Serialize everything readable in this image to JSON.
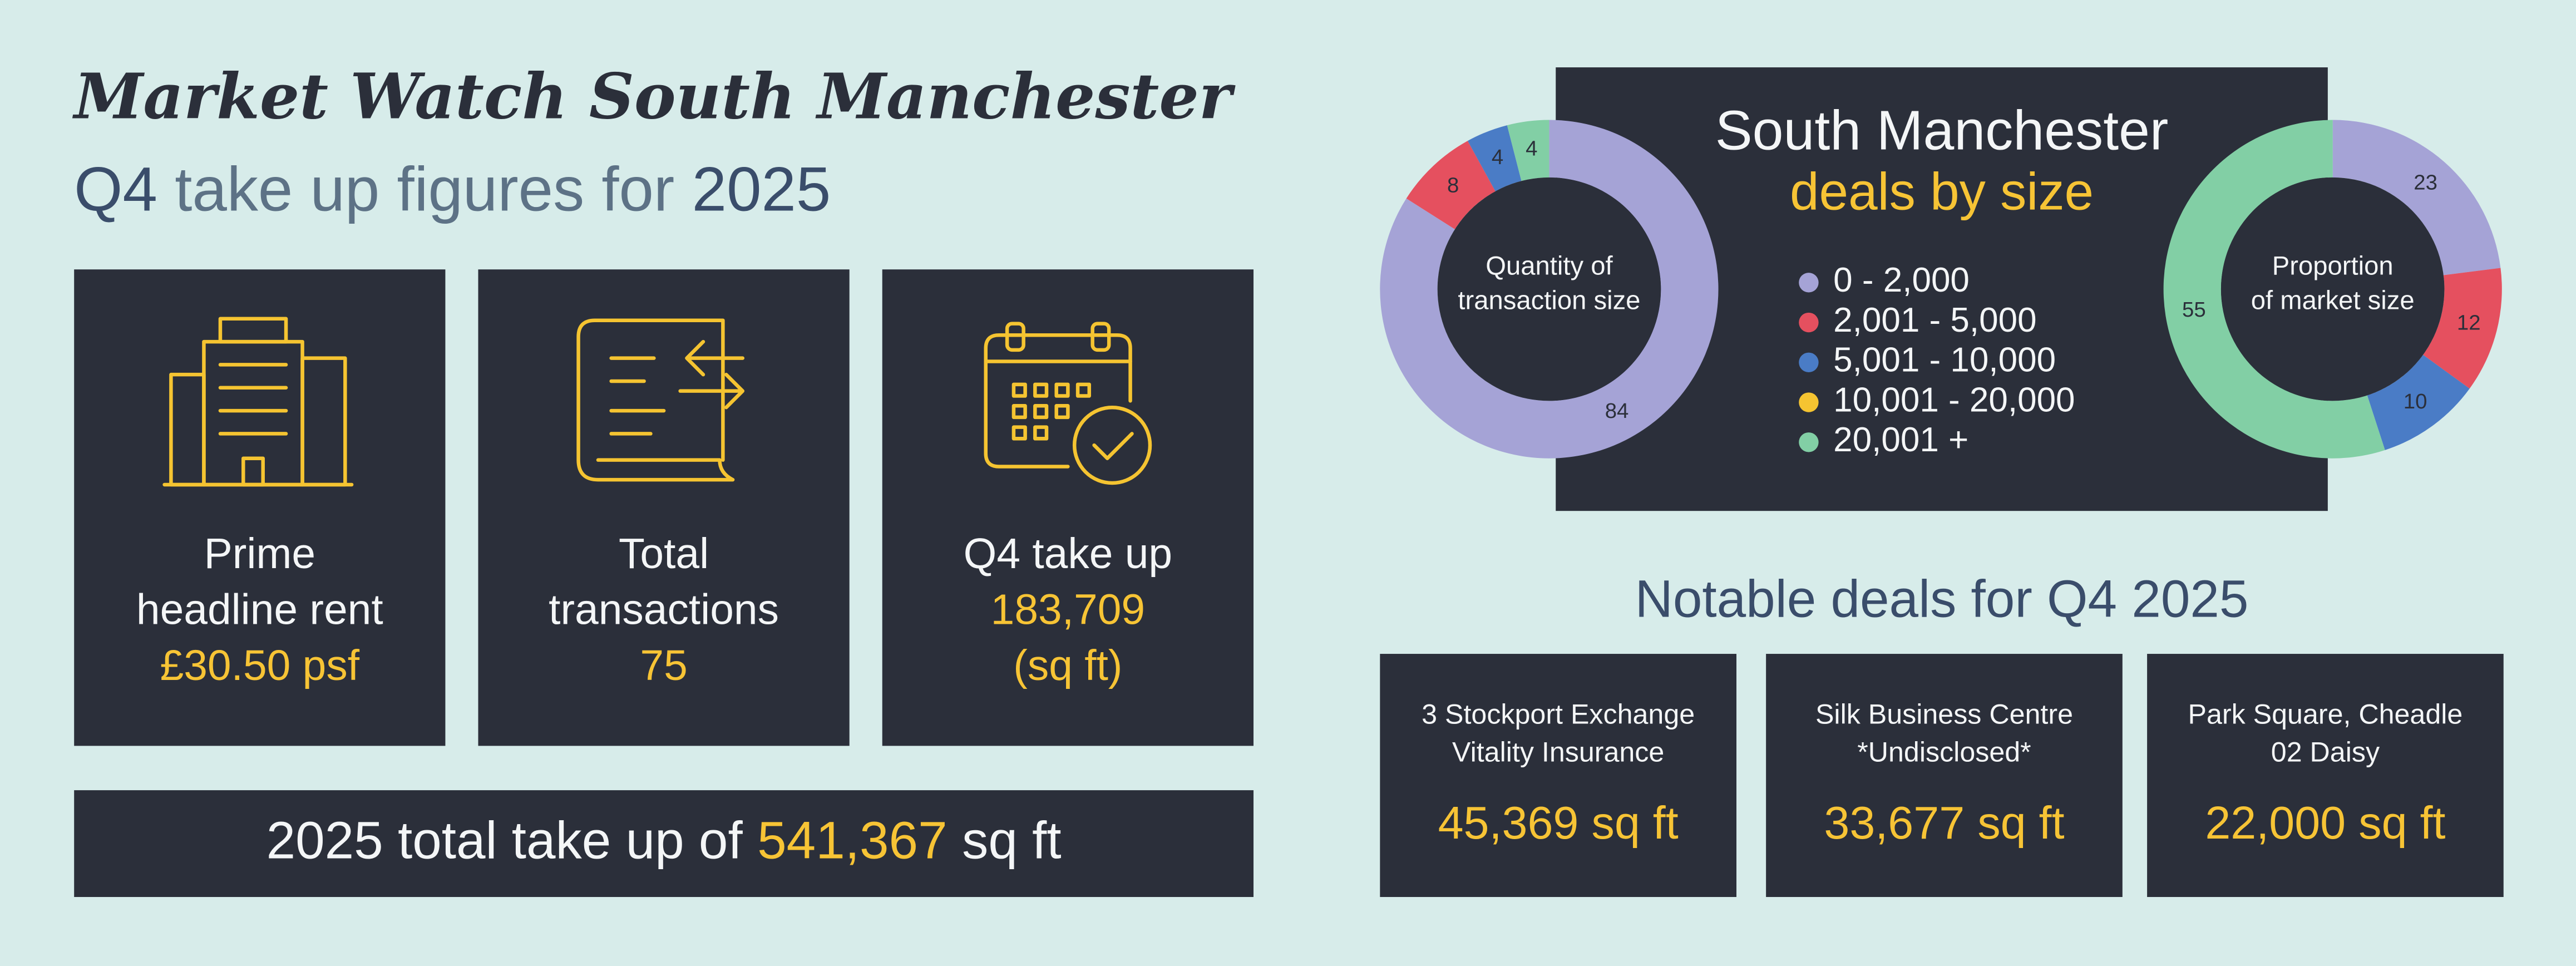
{
  "header": {
    "title": "Market Watch South Manchester",
    "subtitle": [
      "Q4",
      "take up figures for",
      "2025"
    ]
  },
  "cards": [
    {
      "lines": [
        "Prime",
        "headline rent"
      ],
      "value": [
        "£30.50 psf"
      ]
    },
    {
      "lines": [
        "Total",
        "transactions"
      ],
      "value": [
        "75"
      ]
    },
    {
      "lines": [
        "Q4 take up"
      ],
      "value": [
        "183,709",
        "(sq ft)"
      ]
    }
  ],
  "total_bar": [
    "2025 total take up of",
    "541,367",
    "sq ft"
  ],
  "deals_panel": {
    "title": "South Manchester",
    "subtitle": "deals by size"
  },
  "chart_data": [
    {
      "type": "pie",
      "center_label": [
        "Quantity of",
        "transaction size"
      ],
      "categories": [
        "0 - 2,000",
        "2,001 - 5,000",
        "5,001 - 10,000",
        "10,001 - 20,000",
        "20,001 +"
      ],
      "colors": [
        "#a5a3d6",
        "#e5505f",
        "#4a7cc6",
        "#f5c431",
        "#82cfa5"
      ],
      "values": [
        84,
        8,
        4,
        0,
        4
      ]
    },
    {
      "type": "pie",
      "center_label": [
        "Proportion",
        "of market size"
      ],
      "values": [
        23,
        12,
        10,
        0,
        55
      ]
    }
  ],
  "notable": {
    "title": "Notable deals for Q4 2025",
    "deals": [
      {
        "lines": [
          "3 Stockport Exchange",
          "Vitality Insurance"
        ],
        "size": "45,369",
        "unit": "sq ft"
      },
      {
        "lines": [
          "Silk Business Centre",
          "*Undisclosed*"
        ],
        "size": "33,677",
        "unit": "sq ft"
      },
      {
        "lines": [
          "Park Square, Cheadle",
          "02 Daisy"
        ],
        "size": "22,000",
        "unit": "sq ft"
      }
    ]
  }
}
